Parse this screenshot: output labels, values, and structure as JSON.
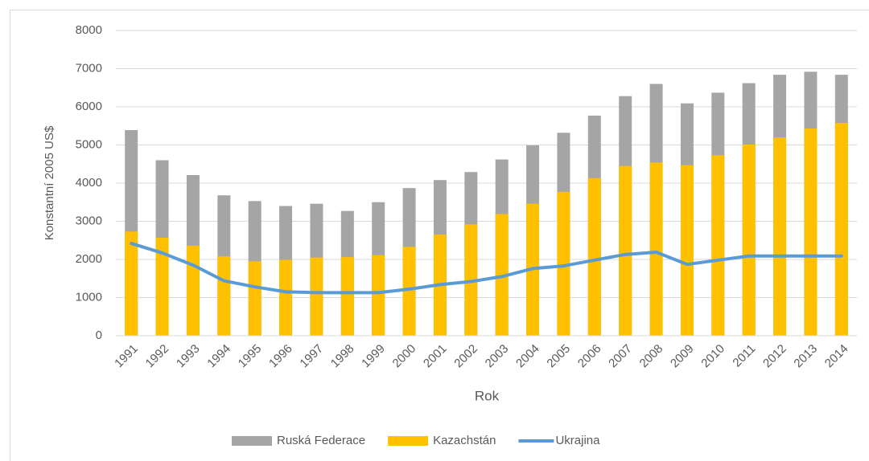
{
  "chart_data": {
    "type": "bar",
    "x_label": "Rok",
    "y_label": "Konstantní 2005 US$",
    "categories": [
      "1991",
      "1992",
      "1993",
      "1994",
      "1995",
      "1996",
      "1997",
      "1998",
      "1999",
      "2000",
      "2001",
      "2002",
      "2003",
      "2004",
      "2005",
      "2006",
      "2007",
      "2008",
      "2009",
      "2010",
      "2011",
      "2012",
      "2013",
      "2014"
    ],
    "series": [
      {
        "name": "Ruská Federace",
        "type": "bar",
        "color": "#a5a5a5",
        "values": [
          5390,
          4600,
          4210,
          3680,
          3530,
          3400,
          3460,
          3270,
          3500,
          3870,
          4080,
          4290,
          4620,
          4990,
          5320,
          5770,
          6280,
          6600,
          6090,
          6370,
          6620,
          6840,
          6920,
          6840
        ]
      },
      {
        "name": "Kazachstán",
        "type": "bar",
        "color": "#ffc000",
        "values": [
          2730,
          2570,
          2360,
          2080,
          1950,
          1990,
          2050,
          2060,
          2110,
          2330,
          2650,
          2920,
          3190,
          3460,
          3770,
          4130,
          4450,
          4540,
          4470,
          4730,
          5010,
          5200,
          5430,
          5580
        ]
      },
      {
        "name": "Ukrajina",
        "type": "line",
        "color": "#5b9bd5",
        "values": [
          2420,
          2170,
          1850,
          1440,
          1280,
          1150,
          1130,
          1130,
          1130,
          1220,
          1340,
          1420,
          1550,
          1760,
          1830,
          1980,
          2130,
          2190,
          1870,
          1980,
          2090,
          2090,
          2090,
          2090
        ]
      }
    ],
    "ylim": [
      0,
      8000
    ],
    "yticks": [
      0,
      1000,
      2000,
      3000,
      4000,
      5000,
      6000,
      7000,
      8000
    ],
    "grid": true,
    "legend": "bottom"
  }
}
